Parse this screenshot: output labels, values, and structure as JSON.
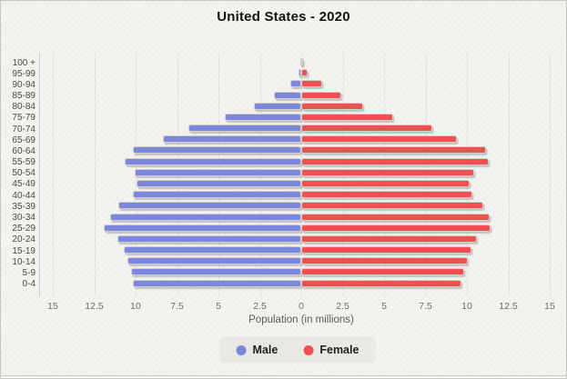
{
  "title": "United States - 2020",
  "chart_data": {
    "type": "bar",
    "variant": "population-pyramid",
    "title": "United States - 2020",
    "xlabel": "Population (in millions)",
    "categories_top_to_bottom": [
      "100 +",
      "95-99",
      "90-94",
      "85-89",
      "80-84",
      "75-79",
      "70-74",
      "65-69",
      "60-64",
      "55-59",
      "50-54",
      "45-49",
      "40-44",
      "35-39",
      "30-34",
      "25-29",
      "20-24",
      "15-19",
      "10-14",
      "5-9",
      "0-4"
    ],
    "series": [
      {
        "name": "Male",
        "color": "#7c86dc",
        "values_millions": [
          0.02,
          0.15,
          0.67,
          1.63,
          2.88,
          4.6,
          6.82,
          8.36,
          10.16,
          10.65,
          10.08,
          9.93,
          10.17,
          11.04,
          11.56,
          11.92,
          11.1,
          10.74,
          10.48,
          10.27,
          10.14
        ]
      },
      {
        "name": "Female",
        "color": "#f15050",
        "values_millions": [
          0.08,
          0.37,
          1.25,
          2.43,
          3.74,
          5.54,
          7.91,
          9.4,
          11.15,
          11.3,
          10.42,
          10.16,
          10.33,
          11.01,
          11.36,
          11.45,
          10.6,
          10.26,
          10.03,
          9.83,
          9.69
        ]
      }
    ],
    "x_axis": {
      "tick_labels": [
        "15",
        "12.5",
        "10",
        "7.5",
        "5",
        "2.5",
        "0",
        "2.5",
        "5",
        "7.5",
        "10",
        "12.5",
        "15"
      ],
      "millions_per_tick": 2.5,
      "max_millions": 15
    },
    "grid": true,
    "legend": {
      "position": "bottom",
      "items": [
        {
          "label": "Male",
          "color": "#7c86dc"
        },
        {
          "label": "Female",
          "color": "#f15050"
        }
      ]
    }
  },
  "colors": {
    "background": "#f2f1ed",
    "male_bar": "#7c86dc",
    "female_bar": "#f15050",
    "legend_background": "#e9e8e4",
    "gridline": "#dddcd8",
    "axis_text": "#6e6e6e",
    "label_text": "#4a4a4a"
  }
}
